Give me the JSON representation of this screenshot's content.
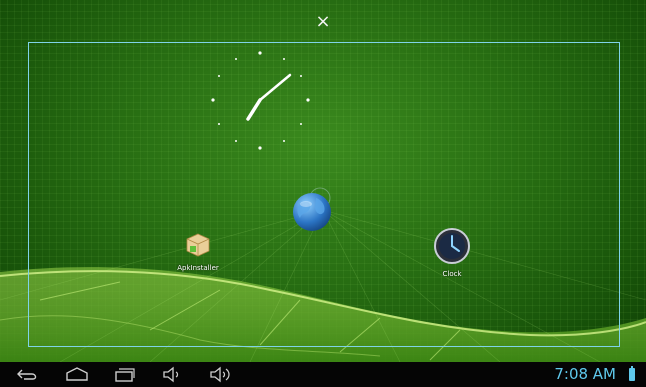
{
  "screen": {
    "close_glyph": "×",
    "accent_color": "#7fd3e8"
  },
  "widgets": {
    "analog_clock": {
      "hour_hand_hint": "7",
      "minute_hand_hint": "08"
    }
  },
  "apps": [
    {
      "label": "ApkInstaller",
      "icon": "package-box-icon"
    },
    {
      "label": "Clock",
      "icon": "clock-icon"
    }
  ],
  "navbar": {
    "icons": [
      "back-icon",
      "home-icon",
      "recent-apps-icon",
      "volume-down-icon",
      "volume-up-icon"
    ],
    "time": "7:08 AM",
    "status_color": "#5fc9ec",
    "battery_icon": "battery-icon"
  }
}
